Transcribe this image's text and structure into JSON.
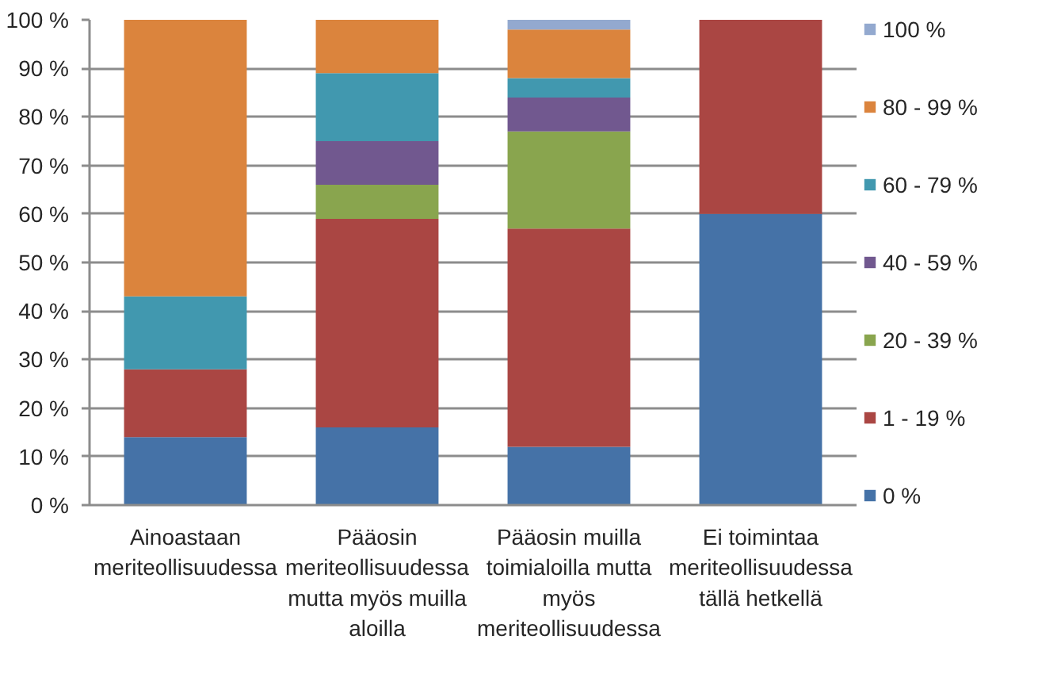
{
  "chart_data": {
    "type": "bar",
    "stacked": true,
    "categories": [
      "Ainoastaan meriteollisuudessa",
      "Pääosin meriteollisuudessa mutta myös muilla aloilla",
      "Pääosin muilla toimialoilla mutta myös meriteollisuudessa",
      "Ei toimintaa meriteollisuudessa tällä hetkellä"
    ],
    "series": [
      {
        "name": "0 %",
        "color": "#4572a7",
        "values": [
          14,
          16,
          12,
          60
        ]
      },
      {
        "name": "1 - 19 %",
        "color": "#aa4643",
        "values": [
          14,
          43,
          45,
          40
        ]
      },
      {
        "name": "20 - 39 %",
        "color": "#89a54e",
        "values": [
          null,
          7,
          20,
          null
        ]
      },
      {
        "name": "40 - 59 %",
        "color": "#71588f",
        "values": [
          null,
          9,
          7,
          null
        ]
      },
      {
        "name": "60 - 79 %",
        "color": "#4198af",
        "values": [
          15,
          14,
          4,
          null
        ]
      },
      {
        "name": "80 - 99 %",
        "color": "#db843d",
        "values": [
          57,
          11,
          10,
          null
        ]
      },
      {
        "name": "100 %",
        "color": "#93a9cf",
        "values": [
          null,
          null,
          2,
          null
        ]
      }
    ],
    "ylim": [
      0,
      100
    ],
    "yticks": [
      {
        "value": 0,
        "label": "0 %"
      },
      {
        "value": 10,
        "label": "10 %"
      },
      {
        "value": 20,
        "label": "20 %"
      },
      {
        "value": 30,
        "label": "30 %"
      },
      {
        "value": 40,
        "label": "40 %"
      },
      {
        "value": 50,
        "label": "50 %"
      },
      {
        "value": 60,
        "label": "60 %"
      },
      {
        "value": 70,
        "label": "70 %"
      },
      {
        "value": 80,
        "label": "80 %"
      },
      {
        "value": 90,
        "label": "90 %"
      },
      {
        "value": 100,
        "label": "100 %"
      }
    ],
    "grid": "y",
    "legend": "right"
  }
}
